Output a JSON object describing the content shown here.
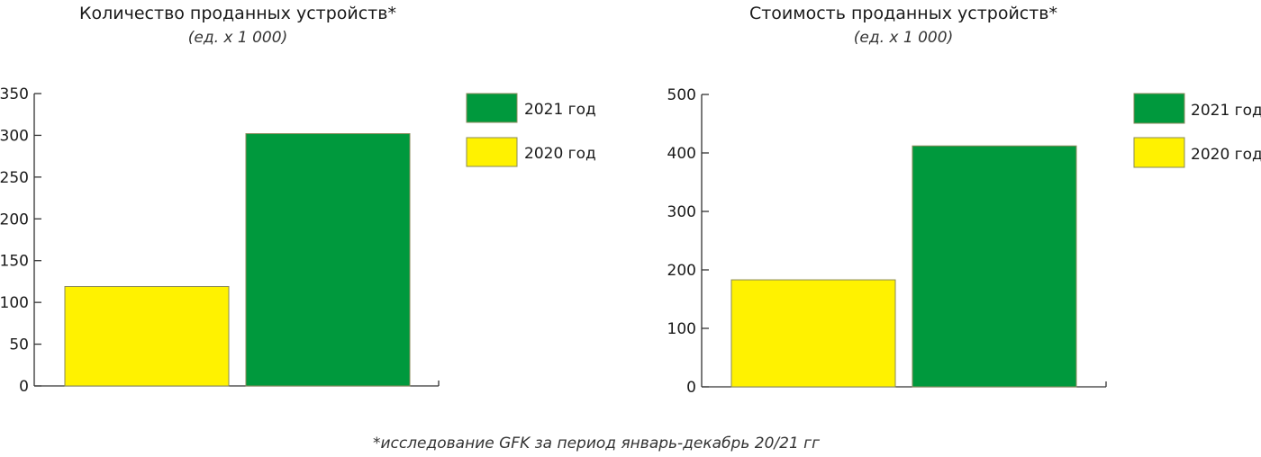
{
  "colors": {
    "series_2021": "#00993d",
    "series_2020": "#fff200",
    "axis": "#333333",
    "bar_stroke": "#8a8a5a"
  },
  "chart_data": [
    {
      "type": "bar",
      "title": "Количество проданных устройств*",
      "subtitle": "(ед. х 1 000)",
      "categories": [
        "2020 год",
        "2021 год"
      ],
      "values": [
        119,
        302
      ],
      "ylim": [
        0,
        350
      ],
      "yticks": [
        0,
        50,
        100,
        150,
        200,
        250,
        300,
        350
      ],
      "ytick_labels": [
        "0",
        "50",
        "100",
        "150",
        "200",
        "250",
        "300",
        "350"
      ],
      "grid": false,
      "legend": {
        "placement": "right",
        "entries": [
          "2021 год",
          "2020 год"
        ]
      }
    },
    {
      "type": "bar",
      "title": "Стоимость проданных устройств*",
      "subtitle": "(ед. х 1 000)",
      "categories": [
        "2020 год",
        "2021 год"
      ],
      "values": [
        183,
        412
      ],
      "ylim": [
        0,
        500
      ],
      "yticks": [
        0,
        100,
        200,
        300,
        400,
        500
      ],
      "ytick_labels": [
        "0",
        "100",
        "200",
        "300",
        "400",
        "500"
      ],
      "grid": false,
      "legend": {
        "placement": "right",
        "entries": [
          "2021 год",
          "2020 год"
        ]
      }
    }
  ],
  "footnote": "*исследование GFK за период январь-декабрь 20/21 гг"
}
